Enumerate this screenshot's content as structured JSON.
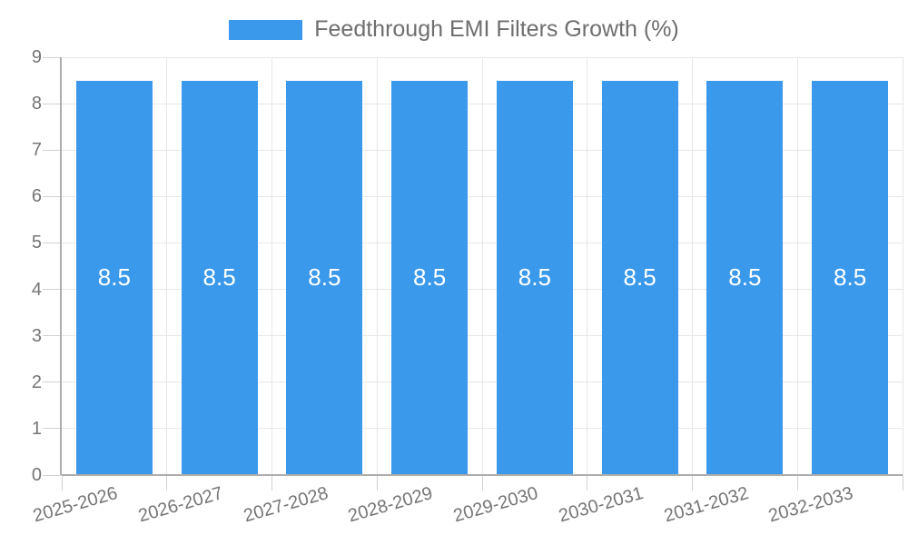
{
  "chart_data": {
    "type": "bar",
    "title": "Feedthrough EMI Filters Growth (%)",
    "categories": [
      "2025-2026",
      "2026-2027",
      "2027-2028",
      "2028-2029",
      "2029-2030",
      "2030-2031",
      "2031-2032",
      "2032-2033"
    ],
    "series": [
      {
        "name": "Feedthrough EMI Filters Growth (%)",
        "color": "#3b99ec",
        "values": [
          8.5,
          8.5,
          8.5,
          8.5,
          8.5,
          8.5,
          8.5,
          8.5
        ]
      }
    ],
    "value_labels": [
      "8.5",
      "8.5",
      "8.5",
      "8.5",
      "8.5",
      "8.5",
      "8.5",
      "8.5"
    ],
    "xlabel": "",
    "ylabel": "",
    "ylim": [
      0,
      9
    ],
    "yticks": [
      0,
      1,
      2,
      3,
      4,
      5,
      6,
      7,
      8,
      9
    ],
    "grid": true,
    "legend_position": "top-center",
    "value_label_position": "center-of-bar"
  },
  "legend": {
    "label": "Feedthrough EMI Filters Growth (%)"
  },
  "colors": {
    "bar": "#3b99ec",
    "gridline": "#e7e7e7",
    "tick": "#d2d2d2",
    "axis": "#adadad",
    "axis_label": "#757575",
    "legend_text": "#6e6e6e",
    "value_label": "#ffffff",
    "background": "#ffffff"
  }
}
